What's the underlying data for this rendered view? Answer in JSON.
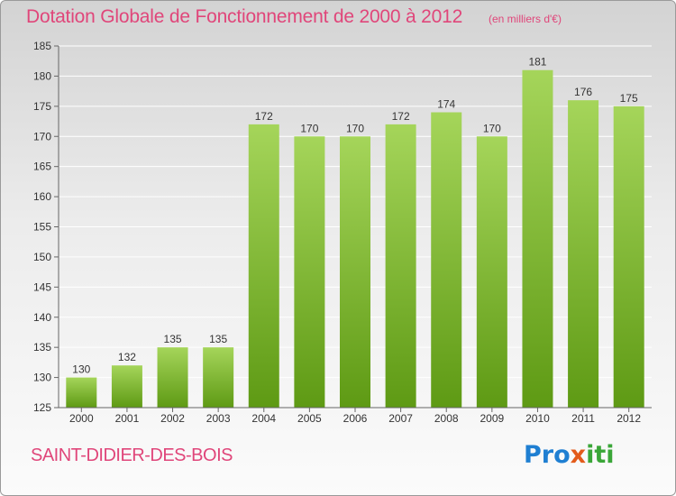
{
  "title": "Dotation Globale de Fonctionnement de 2000 à 2012",
  "subtitle": "(en milliers d'€)",
  "commune": "SAINT-DIDIER-DES-BOIS",
  "brand": {
    "part1": "Pro",
    "part2": "x",
    "part3": "iti"
  },
  "colors": {
    "title": "#e0467a",
    "bar_light": "#a5d55a",
    "bar_dark": "#5e9a14",
    "grid": "#ffffff",
    "axis_text": "#333333"
  },
  "chart_data": {
    "type": "bar",
    "categories": [
      "2000",
      "2001",
      "2002",
      "2003",
      "2004",
      "2005",
      "2006",
      "2007",
      "2008",
      "2009",
      "2010",
      "2011",
      "2012"
    ],
    "values": [
      130,
      132,
      135,
      135,
      172,
      170,
      170,
      172,
      174,
      170,
      181,
      176,
      175
    ],
    "ylim": [
      125,
      185
    ],
    "yticks": [
      125,
      130,
      135,
      140,
      145,
      150,
      155,
      160,
      165,
      170,
      175,
      180,
      185
    ],
    "grid": true
  }
}
